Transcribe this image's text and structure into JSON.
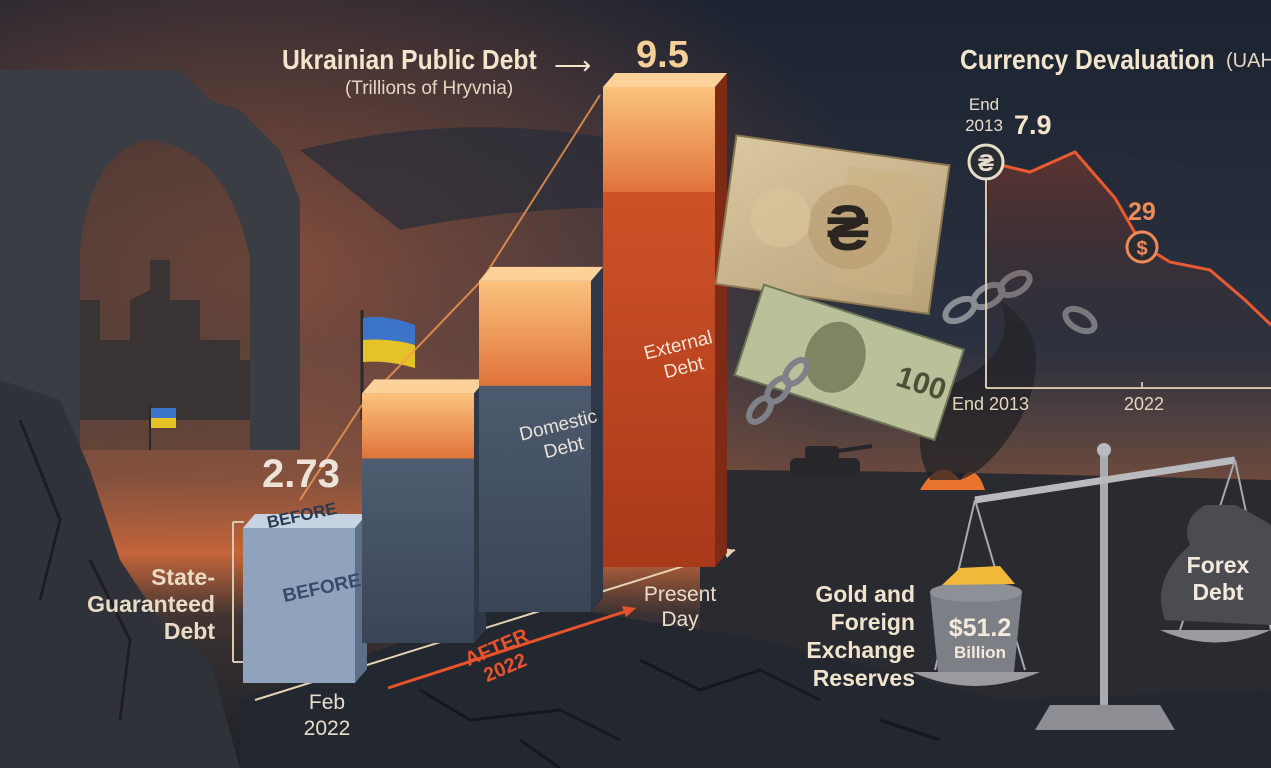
{
  "chart_data": [
    {
      "type": "bar",
      "title": "Ukrainian Public Debt",
      "subtitle": "(Trillions of Hryvnia)",
      "categories": [
        "Feb 2022",
        "",
        "",
        "Present Day"
      ],
      "values": [
        2.73,
        4.7,
        6.4,
        9.5
      ],
      "data_labels": [
        "2.73",
        "",
        "",
        "9.5"
      ],
      "components": [
        "State-Guaranteed Debt",
        "Domestic Debt",
        "External Debt"
      ],
      "period_labels": [
        "BEFORE",
        "AFTER 2022"
      ],
      "series_colors": {
        "domestic": "#4c5a6e",
        "external": "#c74a22",
        "top_glow": "#f29a55"
      }
    },
    {
      "type": "line",
      "title": "Currency Devaluation",
      "unit_label": "(UAH",
      "x": [
        "End 2013",
        "2022"
      ],
      "points": [
        {
          "label": "End 2013",
          "value": 7.9
        },
        {
          "label": "2022",
          "value": 29
        }
      ],
      "data_labels": [
        "7.9",
        "29"
      ],
      "line_color": "#e85a30"
    }
  ],
  "text": {
    "title_arrow": "⟶",
    "before_top": "BEFORE",
    "before_front": "BEFORE",
    "state_guaranteed": [
      "State-",
      "Guaranteed",
      "Debt"
    ],
    "domestic": [
      "Domestic",
      "Debt"
    ],
    "external": [
      "External",
      "Debt"
    ],
    "feb_2022": [
      "Feb",
      "2022"
    ],
    "present_day": [
      "Present",
      "Day"
    ],
    "after_2022": [
      "AFTER",
      "2022"
    ],
    "end_2013_top": [
      "End",
      "2013"
    ]
  },
  "scale_display": {
    "left_pan_label": [
      "Gold and Foreign",
      "Exchange",
      "Reserves"
    ],
    "left_pan_value": "$51.2",
    "left_pan_unit": "Billion",
    "right_pan_label": [
      "Forex",
      "Debt"
    ]
  },
  "icons": {
    "hryvnia_sign": "₴",
    "dollar_sign": "$"
  },
  "colors": {
    "sky_dark": "#1a2130",
    "sunset_orange": "#c85a2e",
    "ground": "#252a33",
    "accent_red": "#e8532c"
  }
}
